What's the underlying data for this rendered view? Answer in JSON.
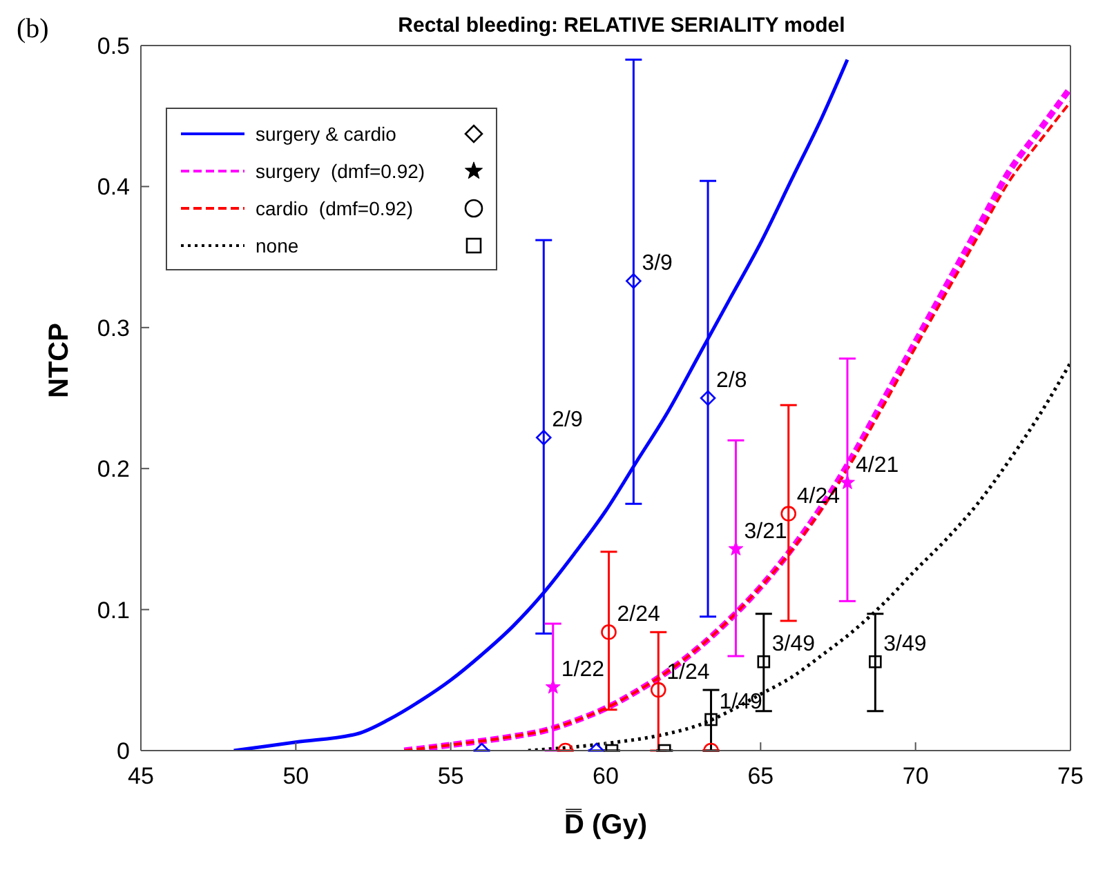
{
  "chart_data": {
    "type": "scatter",
    "title": "Rectal bleeding: RELATIVE SERIALITY model",
    "xlabel": "D̿ (Gy)",
    "ylabel": "NTCP",
    "xlim": [
      45,
      75
    ],
    "xticks": [
      45,
      50,
      55,
      60,
      65,
      70,
      75
    ],
    "ylim": [
      0,
      0.5
    ],
    "yticks": [
      0,
      0.1,
      0.2,
      0.3,
      0.4,
      0.5
    ],
    "grid": false,
    "legend": "top left",
    "annotations": [
      "(b)",
      {
        "text": "2/9",
        "x": 58.0,
        "y": 0.222
      },
      {
        "text": "3/9",
        "x": 60.9,
        "y": 0.333
      },
      {
        "text": "2/8",
        "x": 63.3,
        "y": 0.25
      },
      {
        "text": "1/22",
        "x": 58.3,
        "y": 0.045
      },
      {
        "text": "3/21",
        "x": 64.2,
        "y": 0.143
      },
      {
        "text": "4/21",
        "x": 67.8,
        "y": 0.19
      },
      {
        "text": "2/24",
        "x": 60.1,
        "y": 0.084
      },
      {
        "text": "1/24",
        "x": 61.7,
        "y": 0.043
      },
      {
        "text": "4/24",
        "x": 65.9,
        "y": 0.168
      },
      {
        "text": "1/49",
        "x": 63.4,
        "y": 0.022
      },
      {
        "text": "3/49",
        "x": 65.1,
        "y": 0.063
      },
      {
        "text": "3/49",
        "x": 68.7,
        "y": 0.063
      }
    ],
    "series": [
      {
        "type": "line",
        "name": "surgery & cardio",
        "color": "#0000ff",
        "line_style": "solid",
        "x": [
          48,
          50,
          52,
          53,
          54,
          55,
          56,
          57,
          58,
          59,
          60,
          61,
          62,
          63,
          64,
          65,
          66,
          67,
          67.8
        ],
        "values": [
          0,
          0.006,
          0.012,
          0.022,
          0.035,
          0.05,
          0.068,
          0.088,
          0.112,
          0.14,
          0.17,
          0.205,
          0.24,
          0.28,
          0.32,
          0.36,
          0.405,
          0.45,
          0.49
        ]
      },
      {
        "type": "line",
        "name": "surgery  (dmf=0.92)",
        "color": "#ff00ff",
        "line_style": "dashed",
        "x": [
          53.5,
          55,
          57,
          58,
          59,
          60,
          61,
          62,
          63,
          64,
          65,
          66,
          67,
          68,
          69,
          70,
          71,
          72,
          73,
          74,
          75
        ],
        "values": [
          0,
          0.004,
          0.01,
          0.014,
          0.021,
          0.03,
          0.042,
          0.056,
          0.073,
          0.093,
          0.116,
          0.143,
          0.174,
          0.21,
          0.25,
          0.29,
          0.33,
          0.37,
          0.41,
          0.44,
          0.47
        ]
      },
      {
        "type": "line",
        "name": "cardio  (dmf=0.92)",
        "color": "#ff0000",
        "line_style": "dashed",
        "x": [
          53.5,
          55,
          57,
          58,
          59,
          60,
          61,
          62,
          63,
          64,
          65,
          66,
          67,
          68,
          69,
          70,
          71,
          72,
          73,
          74,
          75
        ],
        "values": [
          0,
          0.004,
          0.01,
          0.014,
          0.021,
          0.03,
          0.042,
          0.056,
          0.073,
          0.093,
          0.116,
          0.142,
          0.172,
          0.207,
          0.246,
          0.286,
          0.325,
          0.364,
          0.403,
          0.432,
          0.46
        ]
      },
      {
        "type": "line",
        "name": "none",
        "color": "#000000",
        "line_style": "dotted",
        "x": [
          57.5,
          60,
          62,
          63,
          64,
          65,
          66,
          67,
          68,
          69,
          70,
          71,
          72,
          73,
          74,
          75
        ],
        "values": [
          0,
          0.005,
          0.012,
          0.018,
          0.028,
          0.04,
          0.052,
          0.068,
          0.085,
          0.105,
          0.128,
          0.15,
          0.175,
          0.205,
          0.238,
          0.275
        ]
      },
      {
        "type": "scatter",
        "color": "#0000ff",
        "marker": "diamond",
        "x": [
          56,
          59.7,
          58.0,
          60.9,
          63.3
        ],
        "values": [
          0,
          0,
          0.222,
          0.333,
          0.25
        ],
        "errors": [
          null,
          null,
          [
            0.083,
            0.362
          ],
          [
            0.175,
            0.49
          ],
          [
            0.095,
            0.404
          ]
        ]
      },
      {
        "type": "scatter",
        "color": "#ff00ff",
        "marker": "star",
        "x": [
          58.3,
          64.2,
          67.8
        ],
        "values": [
          0.045,
          0.143,
          0.19
        ],
        "errors": [
          [
            0,
            0.09
          ],
          [
            0.067,
            0.22
          ],
          [
            0.106,
            0.278
          ]
        ]
      },
      {
        "type": "scatter",
        "color": "#ff0000",
        "marker": "circle",
        "x": [
          58.7,
          60.1,
          61.7,
          63.4,
          65.9
        ],
        "values": [
          0,
          0.084,
          0.043,
          0,
          0.168
        ],
        "errors": [
          null,
          [
            0.029,
            0.141
          ],
          [
            0,
            0.084
          ],
          null,
          [
            0.092,
            0.245
          ]
        ]
      },
      {
        "type": "scatter",
        "color": "#000000",
        "marker": "square",
        "x": [
          60.2,
          61.9,
          63.4,
          65.1,
          68.7
        ],
        "values": [
          0,
          0,
          0.022,
          0.063,
          0.063
        ],
        "errors": [
          null,
          null,
          [
            0,
            0.043
          ],
          [
            0.028,
            0.097
          ],
          [
            0.028,
            0.097
          ]
        ]
      }
    ]
  }
}
